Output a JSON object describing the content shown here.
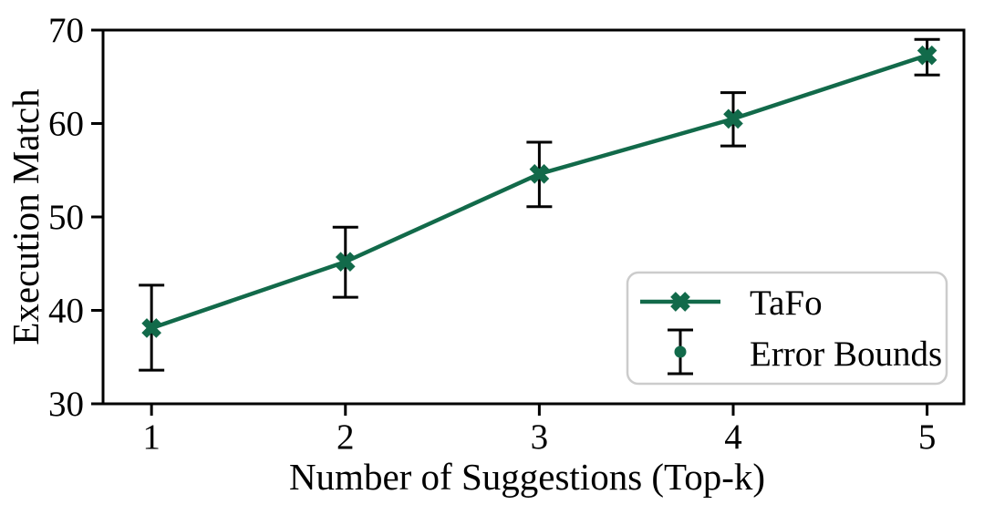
{
  "chart_data": {
    "type": "line",
    "x": [
      1,
      2,
      3,
      4,
      5
    ],
    "series": [
      {
        "name": "TaFo",
        "values": [
          38.1,
          45.2,
          54.6,
          60.5,
          67.3
        ],
        "error_low": [
          33.6,
          41.4,
          51.1,
          57.6,
          65.2
        ],
        "error_high": [
          42.7,
          48.9,
          58.0,
          63.3,
          69.0
        ]
      }
    ],
    "title": "",
    "xlabel": "Number of Suggestions (Top-k)",
    "ylabel": "Execution Match",
    "xticks": [
      1,
      2,
      3,
      4,
      5
    ],
    "yticks": [
      30,
      40,
      50,
      60,
      70
    ],
    "xtick_labels": [
      "1",
      "2",
      "3",
      "4",
      "5"
    ],
    "ytick_labels": [
      "30",
      "40",
      "50",
      "60",
      "70"
    ],
    "xlim": [
      0.75,
      5.19
    ],
    "ylim": [
      30,
      70
    ],
    "grid": false,
    "legend": {
      "position": "lower-right",
      "entries": [
        {
          "label": "TaFo",
          "glyph": "line-with-x-marker"
        },
        {
          "label": "Error Bounds",
          "glyph": "errorbar-with-dot"
        }
      ]
    },
    "colors": {
      "series": "#126a4a",
      "errorbar": "#000000",
      "axes": "#000000",
      "legend_border": "#cccccc",
      "background": "#ffffff"
    }
  }
}
